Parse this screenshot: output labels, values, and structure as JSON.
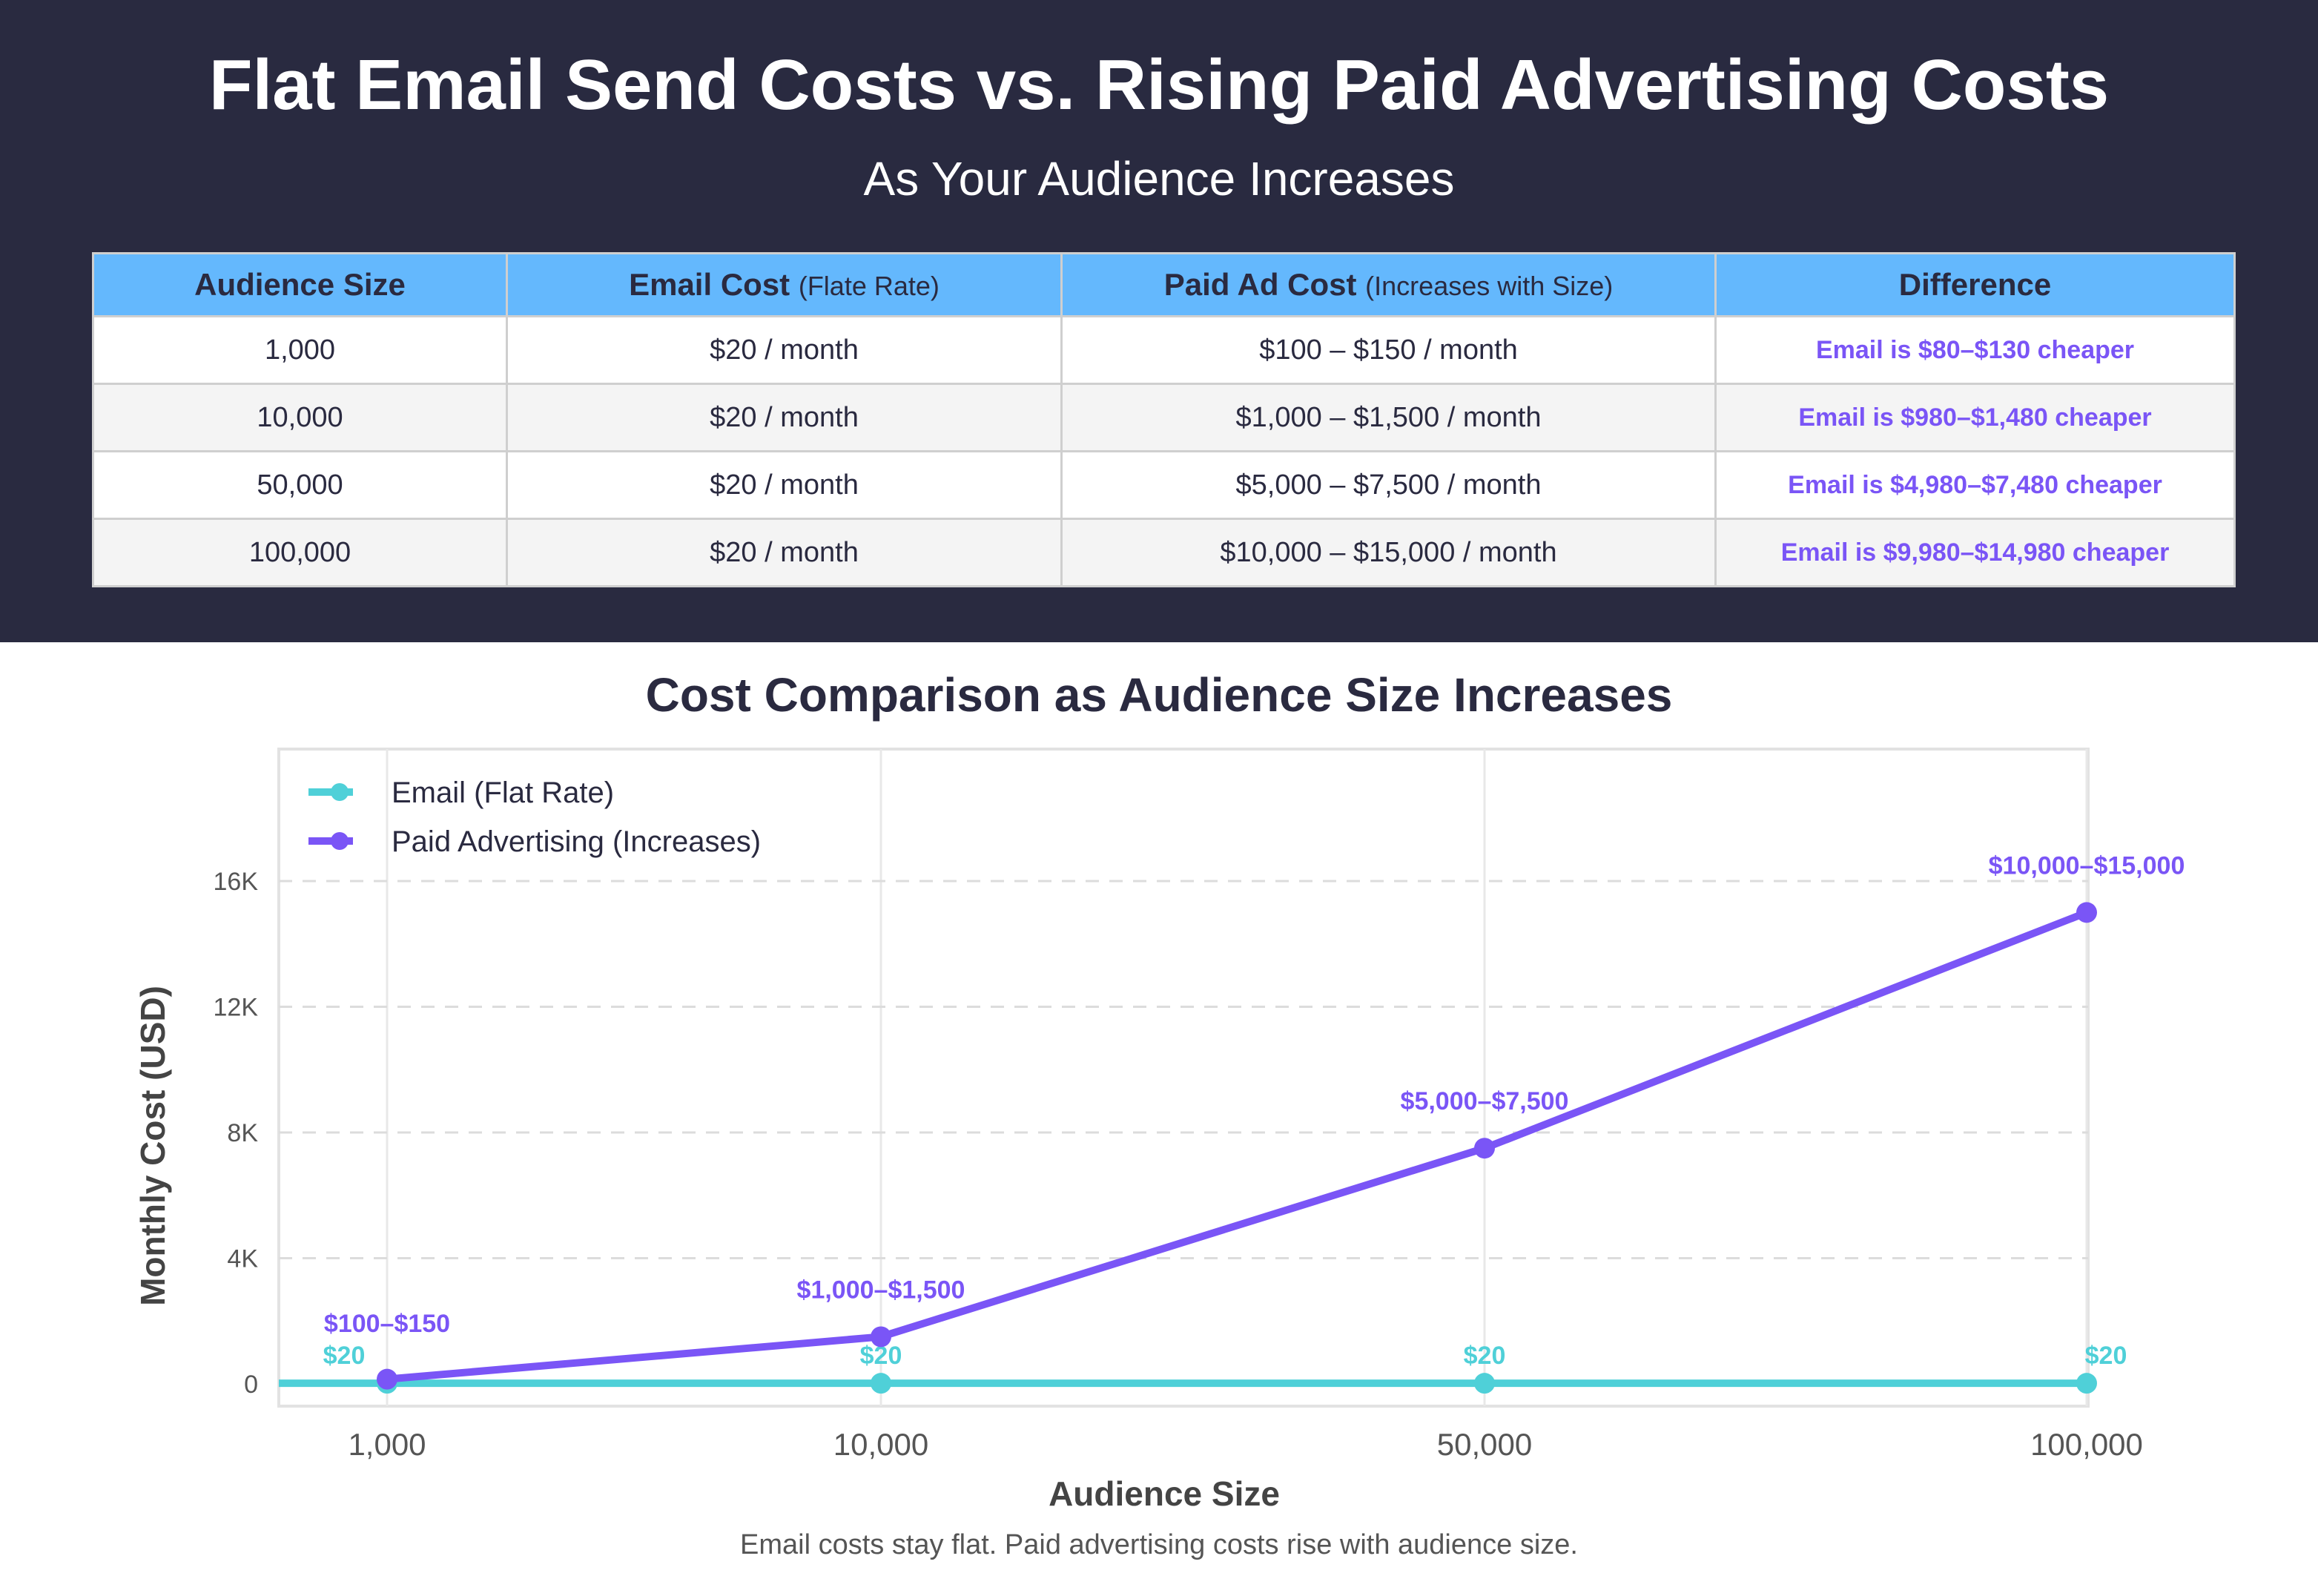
{
  "header": {
    "title": "Flat Email Send Costs vs. Rising Paid Advertising Costs",
    "subtitle": "As Your Audience Increases"
  },
  "table": {
    "columns": [
      {
        "main": "Audience Size",
        "sub": ""
      },
      {
        "main": "Email Cost",
        "sub": "(Flate Rate)"
      },
      {
        "main": "Paid Ad Cost",
        "sub": "(Increases with Size)"
      },
      {
        "main": "Difference",
        "sub": ""
      }
    ],
    "rows": [
      [
        "1,000",
        "$20 / month",
        "$100 – $150 / month",
        "Email is $80–$130 cheaper"
      ],
      [
        "10,000",
        "$20 / month",
        "$1,000 – $1,500 / month",
        "Email is $980–$1,480 cheaper"
      ],
      [
        "50,000",
        "$20 / month",
        "$5,000 – $7,500 / month",
        "Email is $4,980–$7,480 cheaper"
      ],
      [
        "100,000",
        "$20 / month",
        "$10,000 – $15,000 / month",
        "Email is $9,980–$14,980 cheaper"
      ]
    ]
  },
  "chart_data": {
    "type": "line",
    "title": "Cost Comparison as Audience Size Increases",
    "xlabel": "Audience Size",
    "ylabel": "Monthly Cost (USD)",
    "categories": [
      "1,000",
      "10,000",
      "50,000",
      "100,000"
    ],
    "yticks": [
      "0",
      "4K",
      "8K",
      "12K",
      "16K"
    ],
    "ytick_values": [
      0,
      4000,
      8000,
      12000,
      16000
    ],
    "ylim": [
      0,
      19000
    ],
    "grid": true,
    "legend_position": "top-left",
    "series": [
      {
        "name": "Email (Flat Rate)",
        "color": "#4fd0d8",
        "values": [
          20,
          20,
          20,
          20
        ],
        "labels": [
          "$20",
          "$20",
          "$20",
          "$20"
        ]
      },
      {
        "name": "Paid Advertising (Increases)",
        "color": "#7a55f6",
        "values": [
          150,
          1500,
          7500,
          15000
        ],
        "labels": [
          "$100–$150",
          "$1,000–$1,500",
          "$5,000–$7,500",
          "$10,000–$15,000"
        ]
      }
    ]
  },
  "caption": "Email costs stay flat. Paid advertising costs rise with audience size."
}
